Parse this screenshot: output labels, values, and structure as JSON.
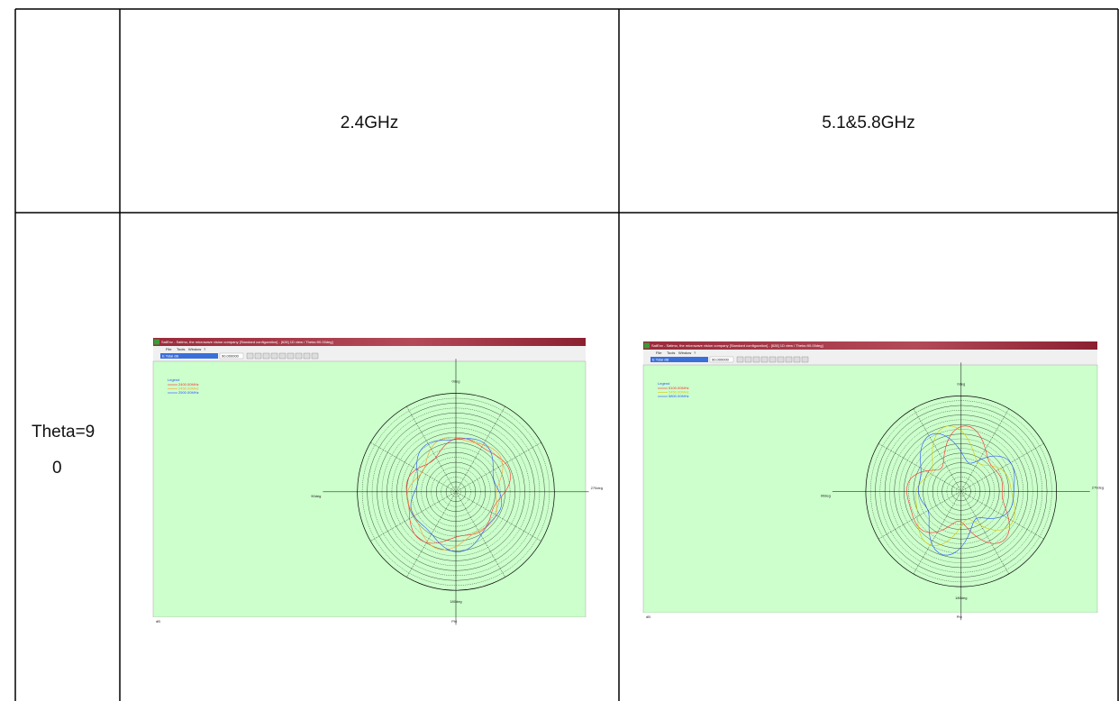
{
  "table": {
    "header": [
      "",
      "2.4GHz",
      "5.1&5.8GHz"
    ],
    "row_label": [
      "Theta=9",
      "0"
    ],
    "shots": [
      {
        "title": "SatEnv - Satimo, the microwave vision company [Standard configuration] - [628] 1D view / Theta=90.00deg]",
        "menu": [
          "File",
          "Tools",
          "Window",
          "?"
        ],
        "field": "E Total dB",
        "angle": "90.000000",
        "legend_title": "Legend",
        "legend": [
          {
            "name": "2400.00MHz",
            "color": "#ff2a2a"
          },
          {
            "name": "2450.00MHz",
            "color": "#ff9a2a"
          },
          {
            "name": "2500.00MHz",
            "color": "#2a50ff"
          }
        ],
        "labels": [
          "0deg",
          "90deg",
          "270deg",
          "180deg"
        ],
        "status": [
          "dB",
          "Phi"
        ]
      },
      {
        "title": "SatEnv - Satimo, the microwave vision company [Standard configuration] - [628] 1D view / Theta=90.00deg]",
        "menu": [
          "File",
          "Tools",
          "Window",
          "?"
        ],
        "field": "E Total dB",
        "angle": "90.000000",
        "legend_title": "Legend",
        "legend": [
          {
            "name": "5100.00MHz",
            "color": "#ff2a2a"
          },
          {
            "name": "5450.00MHz",
            "color": "#d8c800"
          },
          {
            "name": "5800.00MHz",
            "color": "#2a50ff"
          }
        ],
        "labels": [
          "0deg",
          "90deg",
          "270deg",
          "180deg"
        ],
        "status": [
          "dB",
          "Phi"
        ]
      }
    ]
  }
}
